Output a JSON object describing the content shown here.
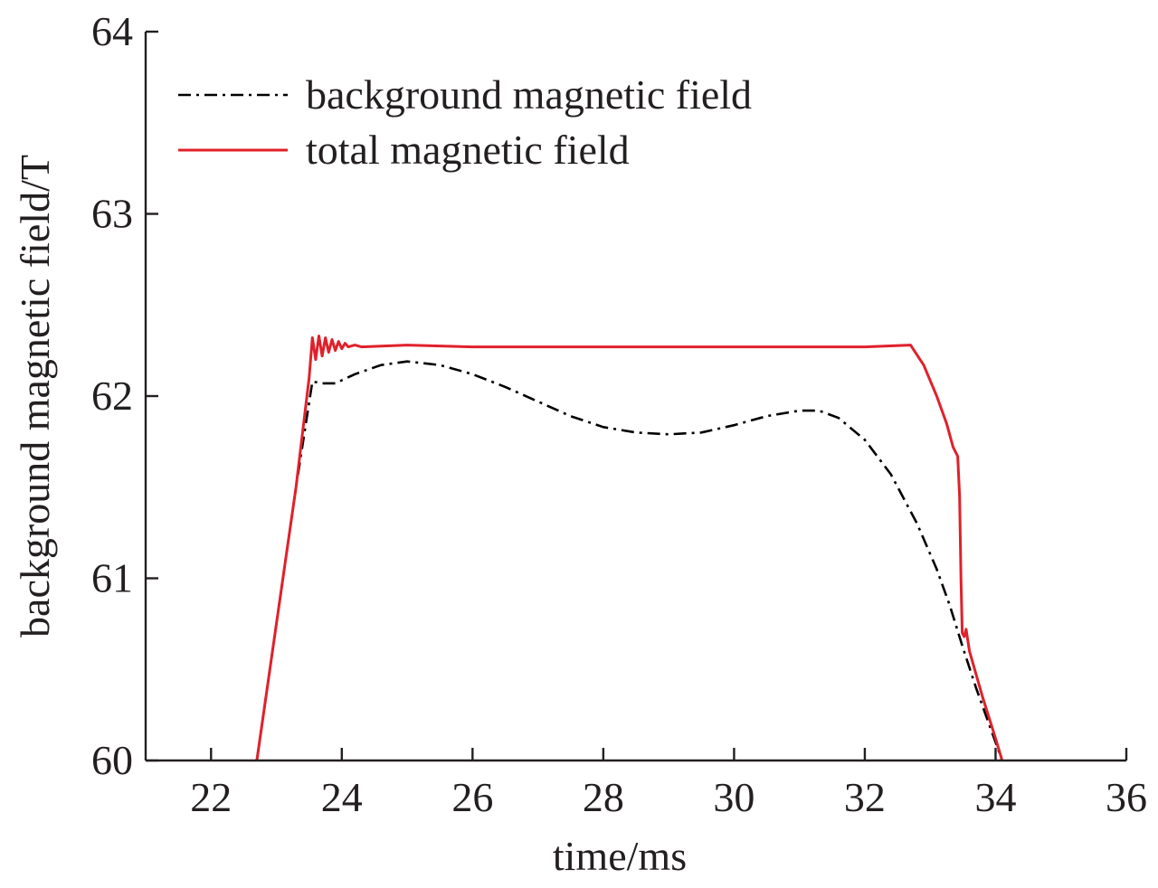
{
  "chart_data": {
    "type": "line",
    "xlabel": "time/ms",
    "ylabel": "background magnetic field/T",
    "xlim": [
      21,
      36
    ],
    "ylim": [
      60,
      64
    ],
    "x_ticks": [
      22,
      24,
      26,
      28,
      30,
      32,
      34,
      36
    ],
    "y_ticks": [
      60,
      61,
      62,
      63,
      64
    ],
    "grid": false,
    "legend_position": "top-left",
    "series": [
      {
        "name": "background magnetic field",
        "color": "#000000",
        "line_style": "dash-dot",
        "points": [
          [
            22.7,
            60.0
          ],
          [
            23.0,
            60.75
          ],
          [
            23.3,
            61.5
          ],
          [
            23.55,
            62.08
          ],
          [
            23.7,
            62.07
          ],
          [
            23.9,
            62.07
          ],
          [
            24.2,
            62.12
          ],
          [
            24.6,
            62.17
          ],
          [
            25.0,
            62.19
          ],
          [
            25.5,
            62.17
          ],
          [
            26.0,
            62.12
          ],
          [
            26.5,
            62.05
          ],
          [
            27.0,
            61.97
          ],
          [
            27.5,
            61.89
          ],
          [
            28.0,
            61.83
          ],
          [
            28.5,
            61.8
          ],
          [
            29.0,
            61.79
          ],
          [
            29.5,
            61.8
          ],
          [
            30.0,
            61.84
          ],
          [
            30.5,
            61.89
          ],
          [
            31.0,
            61.92
          ],
          [
            31.3,
            61.92
          ],
          [
            31.6,
            61.88
          ],
          [
            32.0,
            61.76
          ],
          [
            32.4,
            61.57
          ],
          [
            32.8,
            61.3
          ],
          [
            33.1,
            61.05
          ],
          [
            33.3,
            60.85
          ],
          [
            33.5,
            60.62
          ],
          [
            33.7,
            60.4
          ],
          [
            33.9,
            60.2
          ],
          [
            34.1,
            60.0
          ]
        ]
      },
      {
        "name": "total magnetic field",
        "color": "#e0212b",
        "line_style": "solid",
        "points": [
          [
            22.7,
            60.0
          ],
          [
            23.0,
            60.75
          ],
          [
            23.3,
            61.5
          ],
          [
            23.5,
            62.1
          ],
          [
            23.55,
            62.32
          ],
          [
            23.6,
            62.2
          ],
          [
            23.65,
            62.33
          ],
          [
            23.7,
            62.22
          ],
          [
            23.75,
            62.32
          ],
          [
            23.8,
            62.24
          ],
          [
            23.85,
            62.31
          ],
          [
            23.9,
            62.25
          ],
          [
            23.95,
            62.3
          ],
          [
            24.0,
            62.26
          ],
          [
            24.05,
            62.29
          ],
          [
            24.1,
            62.27
          ],
          [
            24.2,
            62.28
          ],
          [
            24.3,
            62.27
          ],
          [
            25.0,
            62.28
          ],
          [
            26.0,
            62.27
          ],
          [
            28.0,
            62.27
          ],
          [
            30.0,
            62.27
          ],
          [
            32.0,
            62.27
          ],
          [
            32.7,
            62.28
          ],
          [
            32.9,
            62.17
          ],
          [
            33.1,
            62.0
          ],
          [
            33.25,
            61.85
          ],
          [
            33.35,
            61.72
          ],
          [
            33.42,
            61.67
          ],
          [
            33.45,
            61.45
          ],
          [
            33.47,
            61.0
          ],
          [
            33.49,
            60.7
          ],
          [
            33.52,
            60.68
          ],
          [
            33.55,
            60.72
          ],
          [
            33.6,
            60.6
          ],
          [
            33.8,
            60.35
          ],
          [
            34.0,
            60.12
          ],
          [
            34.1,
            60.0
          ]
        ]
      }
    ]
  }
}
